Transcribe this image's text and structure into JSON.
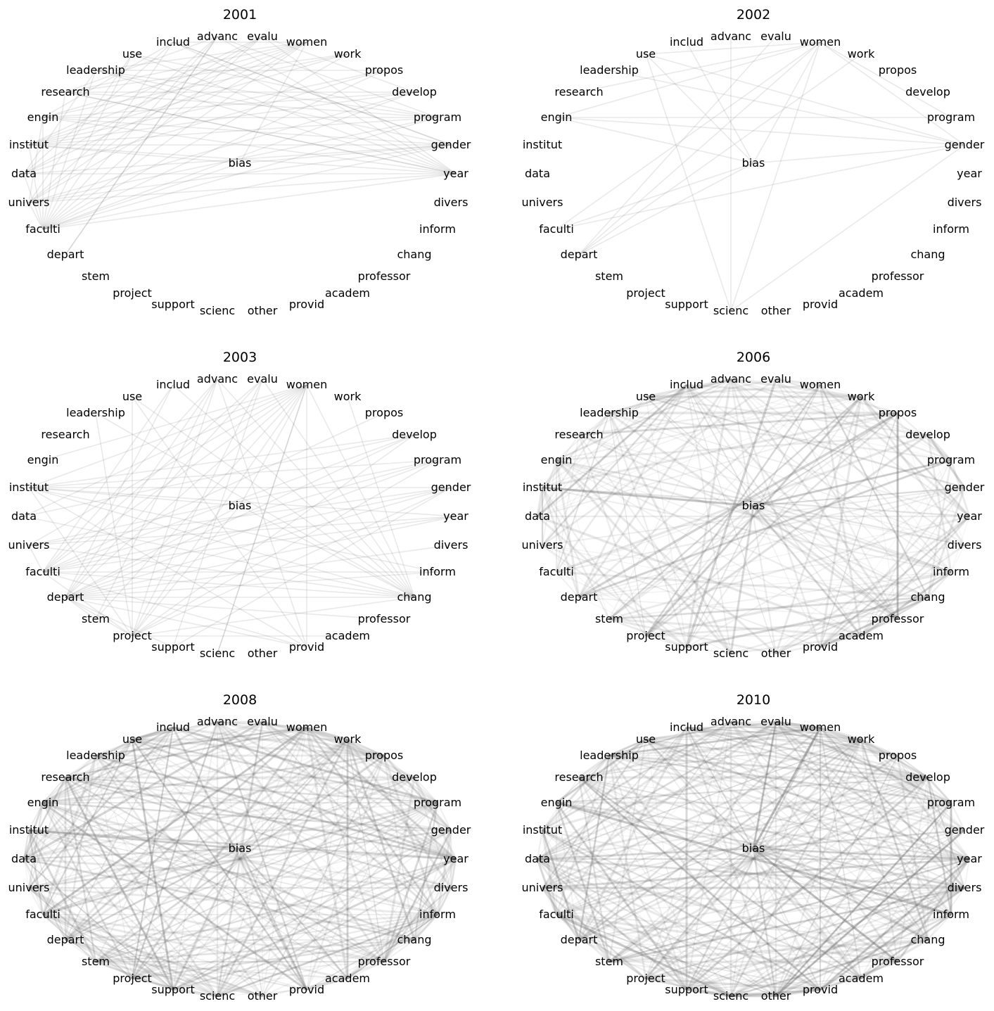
{
  "nodes": [
    "includ",
    "advanc",
    "evalu",
    "women",
    "work",
    "propos",
    "develop",
    "program",
    "gender",
    "year",
    "divers",
    "inform",
    "chang",
    "professor",
    "academ",
    "provid",
    "other",
    "scienc",
    "support",
    "project",
    "stem",
    "depart",
    "faculti",
    "univers",
    "data",
    "institut",
    "engin",
    "research",
    "leadership",
    "use",
    "bias"
  ],
  "panels": [
    {
      "title": "2001",
      "edges": [
        [
          "includ",
          "year"
        ],
        [
          "includ",
          "faculti"
        ],
        [
          "includ",
          "data"
        ],
        [
          "includ",
          "gender"
        ],
        [
          "includ",
          "engin"
        ],
        [
          "advanc",
          "year"
        ],
        [
          "advanc",
          "faculti"
        ],
        [
          "advanc",
          "univers"
        ],
        [
          "advanc",
          "research"
        ],
        [
          "advanc",
          "depart"
        ],
        [
          "evalu",
          "faculti"
        ],
        [
          "evalu",
          "year"
        ],
        [
          "evalu",
          "univers"
        ],
        [
          "evalu",
          "data"
        ],
        [
          "evalu",
          "institut"
        ],
        [
          "women",
          "faculti"
        ],
        [
          "women",
          "univers"
        ],
        [
          "women",
          "institut"
        ],
        [
          "women",
          "engin"
        ],
        [
          "women",
          "research"
        ],
        [
          "women",
          "leadership"
        ],
        [
          "women",
          "bias"
        ],
        [
          "women",
          "data"
        ],
        [
          "work",
          "faculti"
        ],
        [
          "work",
          "engin"
        ],
        [
          "work",
          "research"
        ],
        [
          "work",
          "institut"
        ],
        [
          "propos",
          "faculti"
        ],
        [
          "propos",
          "institut"
        ],
        [
          "propos",
          "leadership"
        ],
        [
          "propos",
          "data"
        ],
        [
          "develop",
          "faculti"
        ],
        [
          "develop",
          "univers"
        ],
        [
          "develop",
          "engin"
        ],
        [
          "develop",
          "institut"
        ],
        [
          "develop",
          "research"
        ],
        [
          "program",
          "faculti"
        ],
        [
          "program",
          "institut"
        ],
        [
          "program",
          "engin"
        ],
        [
          "program",
          "univers"
        ],
        [
          "program",
          "research"
        ],
        [
          "program",
          "leadership"
        ],
        [
          "gender",
          "faculti"
        ],
        [
          "gender",
          "data"
        ],
        [
          "gender",
          "univers"
        ],
        [
          "gender",
          "institut"
        ],
        [
          "gender",
          "engin"
        ],
        [
          "gender",
          "bias"
        ],
        [
          "year",
          "faculti"
        ],
        [
          "year",
          "univers"
        ],
        [
          "year",
          "institut"
        ],
        [
          "year",
          "data"
        ],
        [
          "year",
          "engin"
        ],
        [
          "year",
          "research"
        ],
        [
          "year",
          "leadership"
        ],
        [
          "year",
          "use"
        ],
        [
          "use",
          "faculti"
        ],
        [
          "use",
          "univers"
        ],
        [
          "leadership",
          "faculti"
        ],
        [
          "leadership",
          "data"
        ],
        [
          "research",
          "faculti"
        ],
        [
          "engin",
          "faculti"
        ],
        [
          "institut",
          "faculti"
        ],
        [
          "univers",
          "faculti"
        ],
        [
          "data",
          "faculti"
        ],
        [
          "engin",
          "univers"
        ],
        [
          "bias",
          "faculti"
        ],
        [
          "bias",
          "institut"
        ],
        [
          "depart",
          "advanc"
        ],
        [
          "includ",
          "women"
        ],
        [
          "advanc",
          "program"
        ],
        [
          "evalu",
          "develop"
        ],
        [
          "includ",
          "gender"
        ],
        [
          "use",
          "program"
        ],
        [
          "leadership",
          "gender"
        ],
        [
          "research",
          "year"
        ]
      ]
    },
    {
      "title": "2002",
      "edges": [
        [
          "women",
          "use"
        ],
        [
          "women",
          "research"
        ],
        [
          "women",
          "engin"
        ],
        [
          "women",
          "faculti"
        ],
        [
          "women",
          "depart"
        ],
        [
          "women",
          "scienc"
        ],
        [
          "women",
          "bias"
        ],
        [
          "women",
          "gender"
        ],
        [
          "women",
          "program"
        ],
        [
          "gender",
          "bias"
        ],
        [
          "gender",
          "leadership"
        ],
        [
          "gender",
          "scienc"
        ],
        [
          "gender",
          "use"
        ],
        [
          "gender",
          "faculti"
        ],
        [
          "gender",
          "engin"
        ],
        [
          "bias",
          "depart"
        ],
        [
          "bias",
          "faculti"
        ],
        [
          "bias",
          "use"
        ],
        [
          "bias",
          "engin"
        ],
        [
          "advanc",
          "scienc"
        ],
        [
          "evalu",
          "depart"
        ],
        [
          "program",
          "engin"
        ],
        [
          "scienc",
          "use"
        ],
        [
          "includ",
          "bias"
        ],
        [
          "work",
          "depart"
        ]
      ]
    },
    {
      "title": "2003",
      "edges": [
        [
          "women",
          "depart"
        ],
        [
          "women",
          "faculti"
        ],
        [
          "women",
          "project"
        ],
        [
          "women",
          "institut"
        ],
        [
          "women",
          "scienc"
        ],
        [
          "women",
          "provid"
        ],
        [
          "women",
          "chang"
        ],
        [
          "women",
          "univers"
        ],
        [
          "women",
          "data"
        ],
        [
          "women",
          "stem"
        ],
        [
          "women",
          "engin"
        ],
        [
          "women",
          "bias"
        ],
        [
          "advanc",
          "faculti"
        ],
        [
          "advanc",
          "provid"
        ],
        [
          "advanc",
          "depart"
        ],
        [
          "advanc",
          "project"
        ],
        [
          "advanc",
          "chang"
        ],
        [
          "advanc",
          "stem"
        ],
        [
          "evalu",
          "depart"
        ],
        [
          "evalu",
          "project"
        ],
        [
          "evalu",
          "faculti"
        ],
        [
          "evalu",
          "support"
        ],
        [
          "includ",
          "chang"
        ],
        [
          "includ",
          "faculti"
        ],
        [
          "includ",
          "depart"
        ],
        [
          "develop",
          "depart"
        ],
        [
          "develop",
          "faculti"
        ],
        [
          "develop",
          "institut"
        ],
        [
          "develop",
          "project"
        ],
        [
          "develop",
          "data"
        ],
        [
          "program",
          "depart"
        ],
        [
          "program",
          "faculti"
        ],
        [
          "program",
          "project"
        ],
        [
          "program",
          "institut"
        ],
        [
          "program",
          "univers"
        ],
        [
          "gender",
          "faculti"
        ],
        [
          "gender",
          "depart"
        ],
        [
          "gender",
          "institut"
        ],
        [
          "gender",
          "project"
        ],
        [
          "gender",
          "univers"
        ],
        [
          "gender",
          "support"
        ],
        [
          "year",
          "faculti"
        ],
        [
          "year",
          "depart"
        ],
        [
          "year",
          "institut"
        ],
        [
          "year",
          "univers"
        ],
        [
          "chang",
          "faculti"
        ],
        [
          "chang",
          "depart"
        ],
        [
          "chang",
          "institut"
        ],
        [
          "chang",
          "project"
        ],
        [
          "chang",
          "univers"
        ],
        [
          "chang",
          "use"
        ],
        [
          "chang",
          "data"
        ],
        [
          "chang",
          "leadership"
        ],
        [
          "inform",
          "depart"
        ],
        [
          "inform",
          "faculti"
        ],
        [
          "inform",
          "institut"
        ],
        [
          "provid",
          "depart"
        ],
        [
          "provid",
          "faculti"
        ],
        [
          "provid",
          "institut"
        ],
        [
          "provid",
          "use"
        ],
        [
          "institut",
          "project"
        ],
        [
          "institut",
          "bias"
        ],
        [
          "faculti",
          "project"
        ],
        [
          "depart",
          "project"
        ],
        [
          "depart",
          "stem"
        ],
        [
          "depart",
          "support"
        ],
        [
          "faculti",
          "univers"
        ],
        [
          "use",
          "project"
        ],
        [
          "leadership",
          "project"
        ],
        [
          "bias",
          "depart"
        ],
        [
          "bias",
          "project"
        ],
        [
          "bias",
          "chang"
        ],
        [
          "work",
          "chang"
        ],
        [
          "propos",
          "faculti"
        ],
        [
          "divers",
          "depart"
        ],
        [
          "academ",
          "project"
        ],
        [
          "scienc",
          "women"
        ],
        [
          "professor",
          "depart"
        ],
        [
          "evalu",
          "chang"
        ]
      ]
    },
    {
      "title": "2006",
      "density": 260,
      "seed": 7
    },
    {
      "title": "2008",
      "density": 420,
      "seed": 19
    },
    {
      "title": "2010",
      "density": 440,
      "seed": 31
    }
  ]
}
